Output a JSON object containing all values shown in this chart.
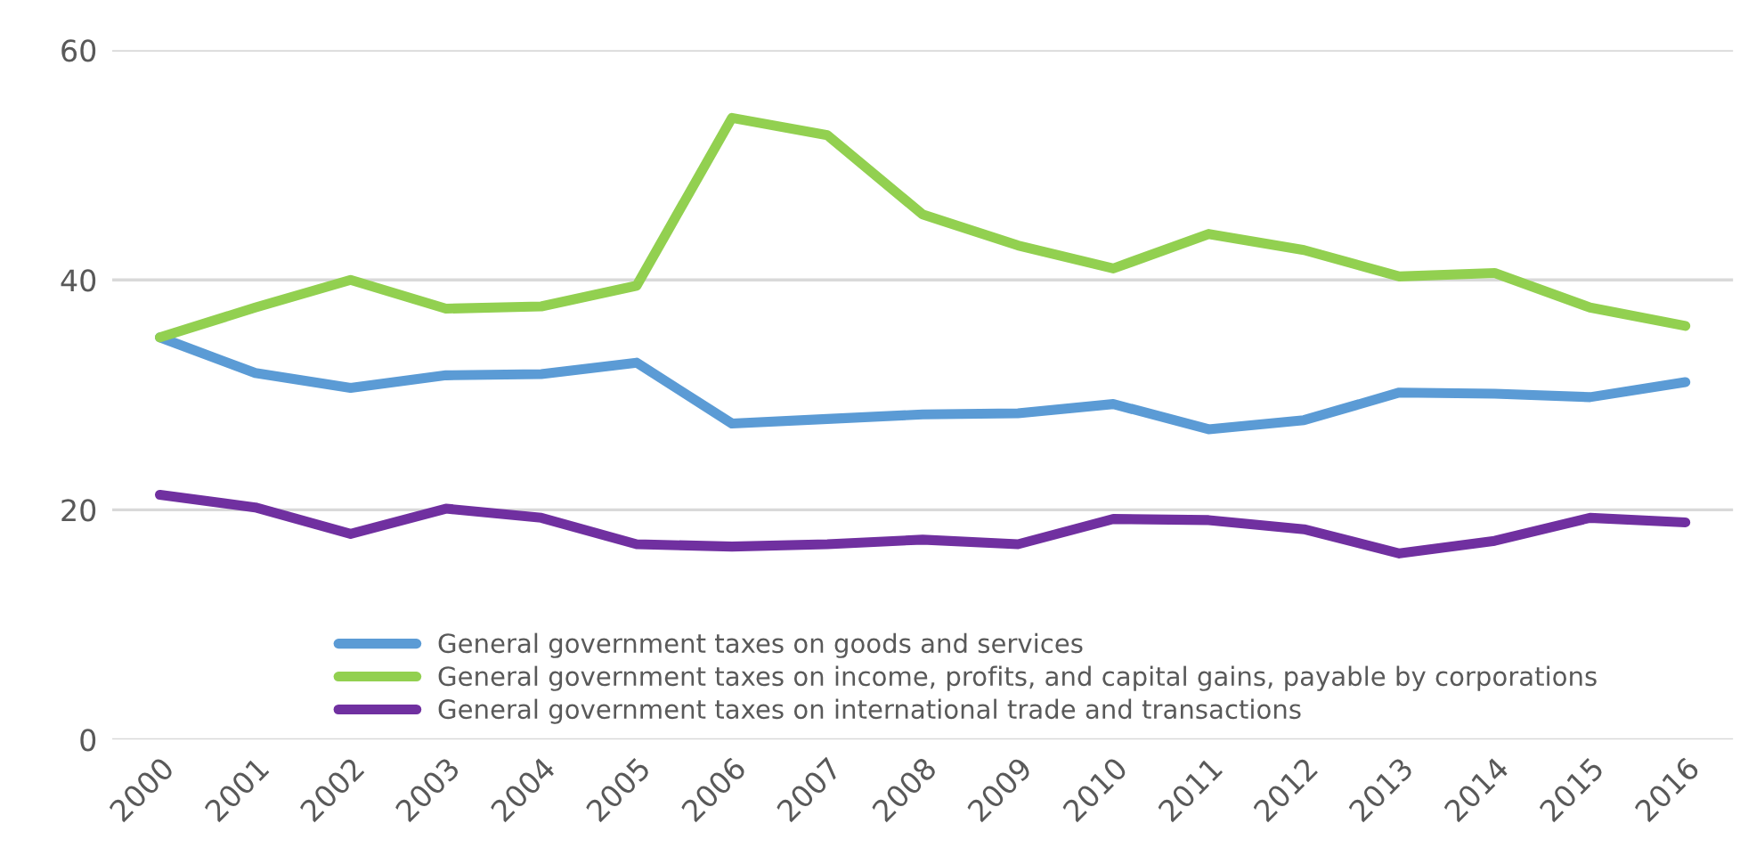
{
  "chart_data": {
    "type": "line",
    "categories": [
      "2000",
      "2001",
      "2002",
      "2003",
      "2004",
      "2005",
      "2006",
      "2007",
      "2008",
      "2009",
      "2010",
      "2011",
      "2012",
      "2013",
      "2014",
      "2015",
      "2016"
    ],
    "series": [
      {
        "name": "General government taxes on goods and services",
        "color": "#5b9bd5",
        "values": [
          35.0,
          31.9,
          30.6,
          31.7,
          31.8,
          32.8,
          27.5,
          27.9,
          28.3,
          28.4,
          29.2,
          27.0,
          27.8,
          30.2,
          30.1,
          29.8,
          31.1
        ]
      },
      {
        "name": "General government taxes on income, profits, and capital gains, payable by corporations",
        "color": "#92d050",
        "values": [
          35.0,
          37.6,
          40.0,
          37.5,
          37.7,
          39.5,
          54.1,
          52.6,
          45.7,
          43.0,
          41.0,
          44.0,
          42.6,
          40.3,
          40.6,
          37.6,
          36.0
        ]
      },
      {
        "name": "General government taxes on international trade and transactions",
        "color": "#7030a0",
        "values": [
          21.3,
          20.2,
          17.9,
          20.1,
          19.3,
          17.0,
          16.8,
          17.0,
          17.4,
          17.0,
          19.2,
          19.1,
          18.3,
          16.2,
          17.3,
          19.3,
          18.9
        ]
      }
    ],
    "ylim": [
      0,
      60
    ],
    "yticks": [
      0,
      20,
      40,
      60
    ],
    "grid": "y",
    "legend": "bottom",
    "marker": "none",
    "line_style": "solid"
  }
}
